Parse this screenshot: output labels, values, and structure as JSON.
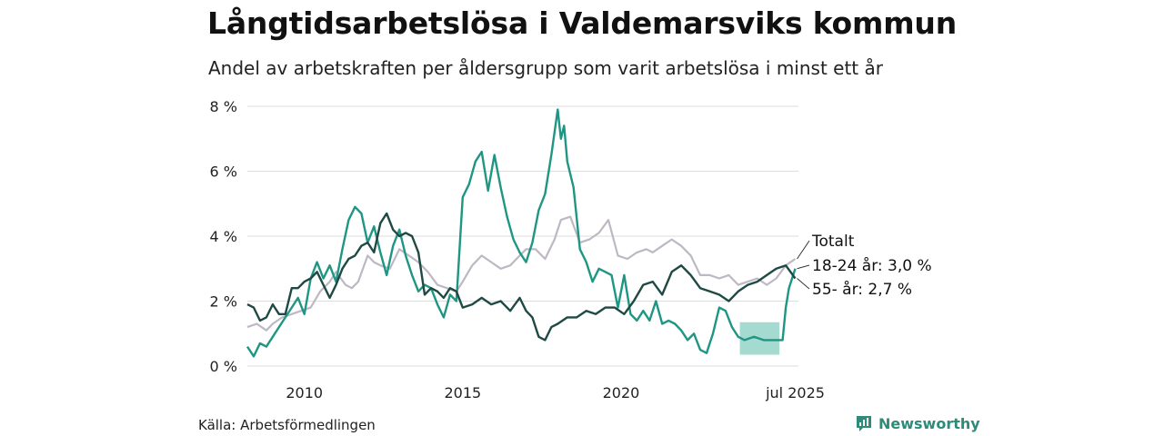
{
  "title": "Långtidsarbetslösa i Valdemarsviks kommun",
  "subtitle": "Andel av arbetskraften per åldersgrupp som varit arbetslösa i minst ett år",
  "source": "Källa: Arbetsförmedlingen",
  "brand": "Newsworthy",
  "icon": "newsworthy-logo-icon",
  "colors": {
    "total": "#bdb8c4",
    "age_18_24": "#1f9683",
    "age_55": "#1f4a44",
    "band": "#8fd1c4",
    "grid": "#dddddd",
    "brand": "#2e8b7a"
  },
  "chart_data": {
    "type": "line",
    "ylim": [
      0,
      8
    ],
    "yticks": [
      0,
      2,
      4,
      6,
      8
    ],
    "ytick_labels": [
      "0 %",
      "2 %",
      "4 %",
      "6 %",
      "8 %"
    ],
    "xlim": [
      2008.2,
      2025.6
    ],
    "xticks": [
      2010,
      2015,
      2020,
      2025.5
    ],
    "xtick_labels": [
      "2010",
      "2015",
      "2020",
      "jul 2025"
    ],
    "grid": true,
    "series": [
      {
        "key": "total",
        "name": "Totalt",
        "x": [
          2008.2,
          2008.5,
          2008.8,
          2009.0,
          2009.3,
          2009.6,
          2009.9,
          2010.2,
          2010.5,
          2010.8,
          2011.0,
          2011.3,
          2011.5,
          2011.7,
          2012.0,
          2012.2,
          2012.4,
          2012.7,
          2013.0,
          2013.3,
          2013.6,
          2013.9,
          2014.2,
          2014.5,
          2014.8,
          2015.0,
          2015.3,
          2015.6,
          2015.9,
          2016.2,
          2016.5,
          2016.8,
          2017.0,
          2017.3,
          2017.6,
          2017.9,
          2018.1,
          2018.4,
          2018.7,
          2019.0,
          2019.3,
          2019.6,
          2019.9,
          2020.2,
          2020.5,
          2020.8,
          2021.0,
          2021.3,
          2021.6,
          2021.9,
          2022.2,
          2022.5,
          2022.8,
          2023.1,
          2023.4,
          2023.7,
          2024.0,
          2024.3,
          2024.6,
          2024.9,
          2025.2,
          2025.5
        ],
        "values": [
          1.2,
          1.3,
          1.1,
          1.3,
          1.5,
          1.6,
          1.7,
          1.8,
          2.3,
          2.6,
          2.9,
          2.5,
          2.4,
          2.6,
          3.4,
          3.2,
          3.1,
          3.0,
          3.6,
          3.4,
          3.2,
          2.9,
          2.5,
          2.4,
          2.3,
          2.6,
          3.1,
          3.4,
          3.2,
          3.0,
          3.1,
          3.4,
          3.6,
          3.6,
          3.3,
          3.9,
          4.5,
          4.6,
          3.8,
          3.9,
          4.1,
          4.5,
          3.4,
          3.3,
          3.5,
          3.6,
          3.5,
          3.7,
          3.9,
          3.7,
          3.4,
          2.8,
          2.8,
          2.7,
          2.8,
          2.5,
          2.6,
          2.7,
          2.5,
          2.7,
          3.1,
          3.3
        ]
      },
      {
        "key": "age_18_24",
        "name": "18-24 år",
        "x": [
          2008.2,
          2008.4,
          2008.6,
          2008.8,
          2009.0,
          2009.2,
          2009.4,
          2009.6,
          2009.8,
          2010.0,
          2010.2,
          2010.4,
          2010.6,
          2010.8,
          2011.0,
          2011.2,
          2011.4,
          2011.6,
          2011.8,
          2012.0,
          2012.2,
          2012.4,
          2012.6,
          2012.8,
          2013.0,
          2013.2,
          2013.4,
          2013.6,
          2013.8,
          2014.0,
          2014.2,
          2014.4,
          2014.6,
          2014.8,
          2015.0,
          2015.2,
          2015.4,
          2015.6,
          2015.8,
          2016.0,
          2016.2,
          2016.4,
          2016.6,
          2016.8,
          2017.0,
          2017.2,
          2017.4,
          2017.6,
          2017.8,
          2018.0,
          2018.1,
          2018.2,
          2018.3,
          2018.5,
          2018.7,
          2018.9,
          2019.1,
          2019.3,
          2019.5,
          2019.7,
          2019.9,
          2020.1,
          2020.3,
          2020.5,
          2020.7,
          2020.9,
          2021.1,
          2021.3,
          2021.5,
          2021.7,
          2021.9,
          2022.1,
          2022.3,
          2022.5,
          2022.7,
          2022.9,
          2023.1,
          2023.3,
          2023.5,
          2023.7,
          2023.9,
          2024.2,
          2024.5,
          2024.8,
          2025.1,
          2025.2,
          2025.3,
          2025.5
        ],
        "values": [
          0.6,
          0.3,
          0.7,
          0.6,
          0.9,
          1.2,
          1.5,
          1.8,
          2.1,
          1.6,
          2.7,
          3.2,
          2.7,
          3.1,
          2.6,
          3.6,
          4.5,
          4.9,
          4.7,
          3.8,
          4.3,
          3.5,
          2.8,
          3.7,
          4.2,
          3.4,
          2.8,
          2.3,
          2.5,
          2.4,
          1.9,
          1.5,
          2.2,
          2.0,
          5.2,
          5.6,
          6.3,
          6.6,
          5.4,
          6.5,
          5.5,
          4.6,
          3.9,
          3.5,
          3.2,
          3.8,
          4.8,
          5.3,
          6.5,
          7.9,
          7.0,
          7.4,
          6.3,
          5.5,
          3.6,
          3.2,
          2.6,
          3.0,
          2.9,
          2.8,
          1.8,
          2.8,
          1.6,
          1.4,
          1.7,
          1.4,
          2.0,
          1.3,
          1.4,
          1.3,
          1.1,
          0.8,
          1.0,
          0.5,
          0.4,
          1.0,
          1.8,
          1.7,
          1.2,
          0.9,
          0.8,
          0.9,
          0.8,
          0.8,
          0.8,
          1.8,
          2.4,
          3.0
        ]
      },
      {
        "key": "age_55",
        "name": "55- år",
        "x": [
          2008.2,
          2008.4,
          2008.6,
          2008.8,
          2009.0,
          2009.2,
          2009.4,
          2009.6,
          2009.8,
          2010.0,
          2010.2,
          2010.4,
          2010.6,
          2010.8,
          2011.0,
          2011.2,
          2011.4,
          2011.6,
          2011.8,
          2012.0,
          2012.2,
          2012.4,
          2012.6,
          2012.8,
          2013.0,
          2013.2,
          2013.4,
          2013.6,
          2013.8,
          2014.0,
          2014.2,
          2014.4,
          2014.6,
          2014.8,
          2015.0,
          2015.3,
          2015.6,
          2015.9,
          2016.2,
          2016.5,
          2016.8,
          2017.0,
          2017.2,
          2017.4,
          2017.6,
          2017.8,
          2018.0,
          2018.3,
          2018.6,
          2018.9,
          2019.2,
          2019.5,
          2019.8,
          2020.1,
          2020.4,
          2020.7,
          2021.0,
          2021.3,
          2021.6,
          2021.9,
          2022.2,
          2022.5,
          2022.8,
          2023.1,
          2023.4,
          2023.7,
          2024.0,
          2024.3,
          2024.6,
          2024.9,
          2025.2,
          2025.5
        ],
        "values": [
          1.9,
          1.8,
          1.4,
          1.5,
          1.9,
          1.6,
          1.6,
          2.4,
          2.4,
          2.6,
          2.7,
          2.9,
          2.5,
          2.1,
          2.5,
          3.0,
          3.3,
          3.4,
          3.7,
          3.8,
          3.5,
          4.4,
          4.7,
          4.2,
          4.0,
          4.1,
          4.0,
          3.5,
          2.2,
          2.4,
          2.3,
          2.1,
          2.4,
          2.3,
          1.8,
          1.9,
          2.1,
          1.9,
          2.0,
          1.7,
          2.1,
          1.7,
          1.5,
          0.9,
          0.8,
          1.2,
          1.3,
          1.5,
          1.5,
          1.7,
          1.6,
          1.8,
          1.8,
          1.6,
          2.0,
          2.5,
          2.6,
          2.2,
          2.9,
          3.1,
          2.8,
          2.4,
          2.3,
          2.2,
          2.0,
          2.3,
          2.5,
          2.6,
          2.8,
          3.0,
          3.1,
          2.7
        ]
      }
    ],
    "band": {
      "x": [
        2023.75,
        2025.0
      ],
      "y_low": 0.35,
      "y_high": 1.35
    },
    "annotations": {
      "totalt_label": "Totalt",
      "age_18_24_label": "18-24 år: 3,0 %",
      "age_55_label": "55- år: 2,7 %"
    }
  }
}
